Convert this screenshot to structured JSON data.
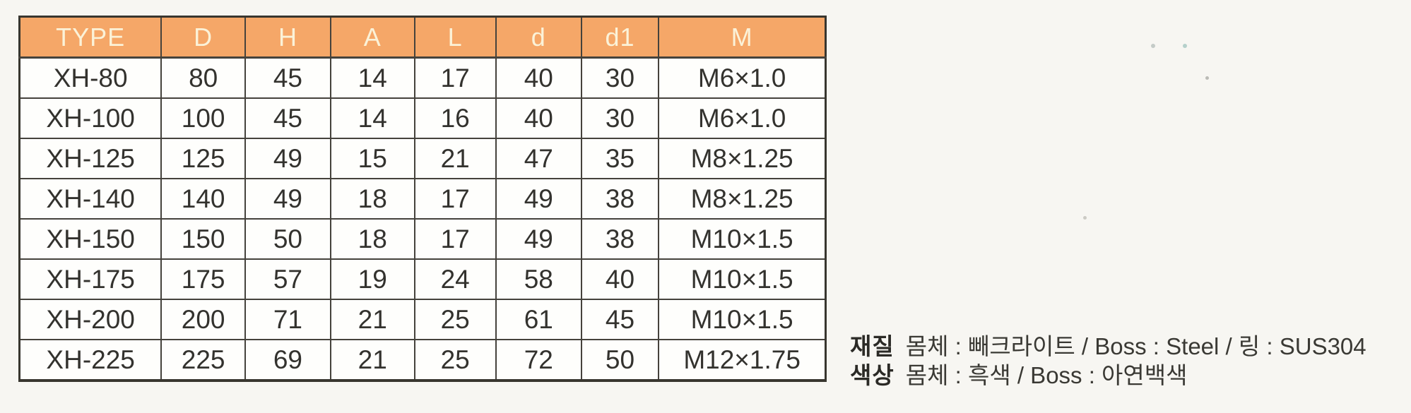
{
  "table": {
    "columns": [
      "TYPE",
      "D",
      "H",
      "A",
      "L",
      "d",
      "d1",
      "M"
    ],
    "rows": [
      [
        "XH-80",
        "80",
        "45",
        "14",
        "17",
        "40",
        "30",
        "M6×1.0"
      ],
      [
        "XH-100",
        "100",
        "45",
        "14",
        "16",
        "40",
        "30",
        "M6×1.0"
      ],
      [
        "XH-125",
        "125",
        "49",
        "15",
        "21",
        "47",
        "35",
        "M8×1.25"
      ],
      [
        "XH-140",
        "140",
        "49",
        "18",
        "17",
        "49",
        "38",
        "M8×1.25"
      ],
      [
        "XH-150",
        "150",
        "50",
        "18",
        "17",
        "49",
        "38",
        "M10×1.5"
      ],
      [
        "XH-175",
        "175",
        "57",
        "19",
        "24",
        "58",
        "40",
        "M10×1.5"
      ],
      [
        "XH-200",
        "200",
        "71",
        "21",
        "25",
        "61",
        "45",
        "M10×1.5"
      ],
      [
        "XH-225",
        "225",
        "69",
        "21",
        "25",
        "72",
        "50",
        "M12×1.75"
      ]
    ]
  },
  "notes": [
    {
      "label": "재질",
      "text": "몸체 : 빼크라이트 / Boss : Steel / 링 : SUS304"
    },
    {
      "label": "색상",
      "text": "몸체 : 흑색 / Boss : 아연백색"
    }
  ],
  "colors": {
    "header_bg": "#f5a768",
    "header_text": "#fbf2d8",
    "grid_border": "#45423c",
    "cell_text": "#33322e"
  }
}
